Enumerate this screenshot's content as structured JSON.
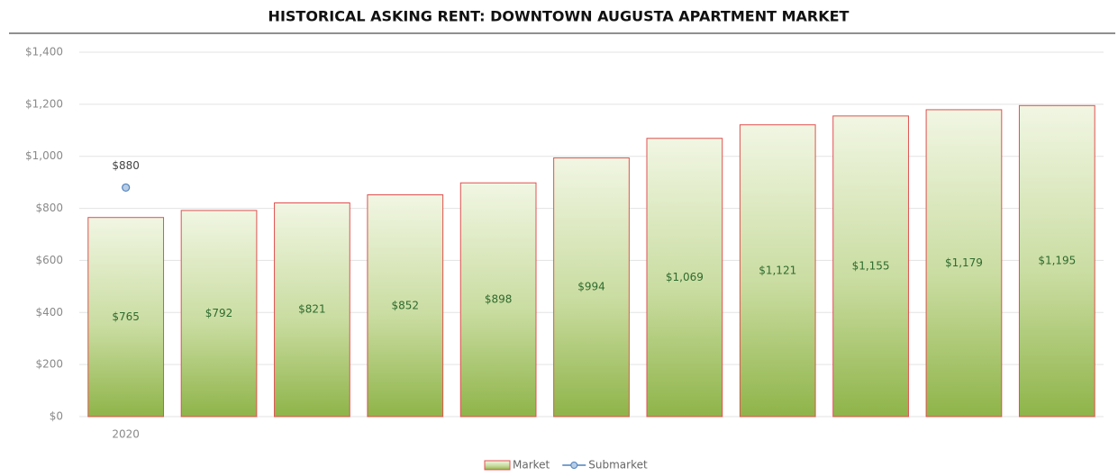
{
  "chart_data": {
    "type": "bar",
    "title": "HISTORICAL ASKING RENT: DOWNTOWN AUGUSTA APARTMENT MARKET",
    "categories": [
      "2020",
      null,
      null,
      null,
      null,
      null,
      null,
      null,
      null,
      null,
      null
    ],
    "series": [
      {
        "name": "Market",
        "type": "bar",
        "color": "#9bbb59",
        "values": [
          765,
          792,
          821,
          852,
          898,
          994,
          1069,
          1121,
          1155,
          1179,
          1195
        ],
        "value_labels": [
          "$765",
          "$792",
          "$821",
          "$852",
          "$898",
          "$994",
          "$1,069",
          "$1,121",
          "$1,155",
          "$1,179",
          "$1,195"
        ]
      },
      {
        "name": "Submarket",
        "type": "line",
        "color": "#4f81bd",
        "values": [
          880,
          null,
          null,
          null,
          null,
          null,
          null,
          null,
          null,
          null,
          null
        ],
        "value_labels": [
          "$880",
          null,
          null,
          null,
          null,
          null,
          null,
          null,
          null,
          null,
          null
        ]
      }
    ],
    "ylim": [
      0,
      1400
    ],
    "yticks": [
      {
        "value": 0,
        "label": "$0"
      },
      {
        "value": 200,
        "label": "$200"
      },
      {
        "value": 400,
        "label": "$400"
      },
      {
        "value": 600,
        "label": "$600"
      },
      {
        "value": 800,
        "label": "$800"
      },
      {
        "value": 1000,
        "label": "$1,000"
      },
      {
        "value": 1200,
        "label": "$1,200"
      },
      {
        "value": 1400,
        "label": "$1,400"
      }
    ],
    "grid": true,
    "legend": "bottom"
  }
}
